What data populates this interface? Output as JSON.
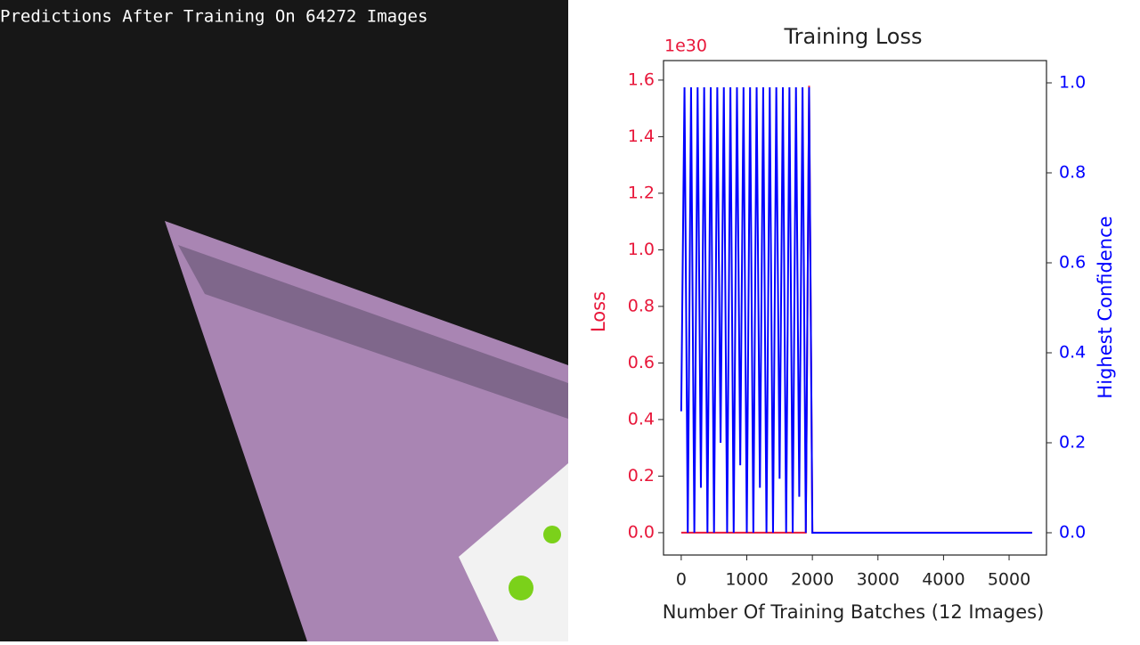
{
  "left_panel": {
    "caption": "Predictions After Training On 64272 Images"
  },
  "chart_data": {
    "type": "line",
    "title": "Training Loss",
    "xlabel": "Number Of Training Batches (12 Images)",
    "ylabel": "Loss",
    "y2label": "Highest Confidence",
    "y_offset_label": "1e30",
    "x": [
      0,
      50,
      100,
      150,
      200,
      250,
      300,
      350,
      400,
      450,
      500,
      550,
      600,
      650,
      700,
      750,
      800,
      850,
      900,
      950,
      1000,
      1050,
      1100,
      1150,
      1200,
      1250,
      1300,
      1350,
      1400,
      1450,
      1500,
      1550,
      1600,
      1650,
      1700,
      1750,
      1800,
      1850,
      1900,
      1950,
      2000,
      5350
    ],
    "series": [
      {
        "name": "Loss",
        "color": "#e8173a",
        "values": [
          0,
          0,
          0,
          0,
          0,
          0,
          0,
          0,
          0,
          0,
          0,
          0,
          0,
          0,
          0,
          0,
          0,
          0,
          0,
          0,
          0,
          0,
          0,
          0,
          0,
          0,
          0,
          0,
          0,
          0,
          0,
          0,
          0,
          0,
          0,
          0,
          0,
          0,
          0,
          1.58,
          0,
          0
        ]
      },
      {
        "name": "Highest Confidence",
        "color": "#0000ff",
        "axis": "y2",
        "values": [
          0.27,
          0.99,
          0,
          0.99,
          0,
          0.99,
          0.1,
          0.99,
          0,
          0.99,
          0,
          0.99,
          0.2,
          0.99,
          0,
          0.99,
          0,
          0.99,
          0.15,
          0.99,
          0,
          0.99,
          0,
          0.99,
          0.1,
          0.99,
          0,
          0.99,
          0,
          0.99,
          0.12,
          0.99,
          0,
          0.99,
          0,
          0.99,
          0.08,
          0.99,
          0,
          0.99,
          0,
          0
        ]
      }
    ],
    "xlim": [
      -270,
      5570
    ],
    "xticks": [
      0,
      1000,
      2000,
      3000,
      4000,
      5000
    ],
    "ylim": [
      -0.079,
      1.669
    ],
    "yticks": [
      {
        "value": 0,
        "label": "0.0"
      },
      {
        "value": 0.2,
        "label": "0.2"
      },
      {
        "value": 0.4,
        "label": "0.4"
      },
      {
        "value": 0.6,
        "label": "0.6"
      },
      {
        "value": 0.8,
        "label": "0.8"
      },
      {
        "value": 1.0,
        "label": "1.0"
      },
      {
        "value": 1.2,
        "label": "1.2"
      },
      {
        "value": 1.4,
        "label": "1.4"
      },
      {
        "value": 1.6,
        "label": "1.6"
      }
    ],
    "y2lim": [
      -0.0495,
      1.0495
    ],
    "y2ticks": [
      {
        "value": 0,
        "label": "0.0"
      },
      {
        "value": 0.2,
        "label": "0.2"
      },
      {
        "value": 0.4,
        "label": "0.4"
      },
      {
        "value": 0.6,
        "label": "0.6"
      },
      {
        "value": 0.8,
        "label": "0.8"
      },
      {
        "value": 1.0,
        "label": "1.0"
      }
    ]
  }
}
